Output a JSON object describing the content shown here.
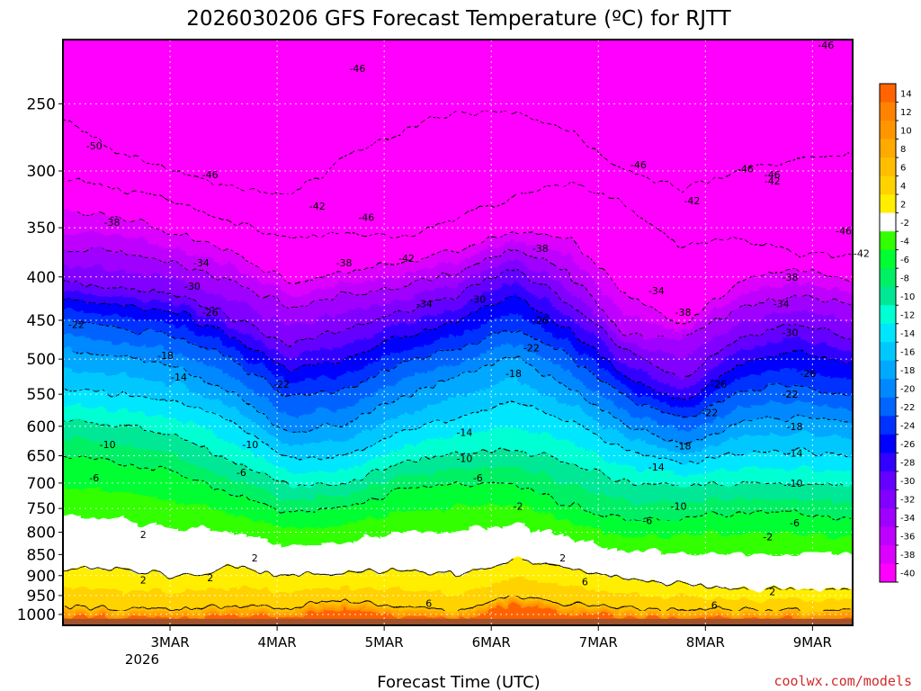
{
  "chart_data": {
    "type": "heatmap",
    "title": "2026030206 GFS Forecast Temperature (ºC) for RJTT",
    "xlabel": "Forecast Time (UTC)",
    "ylabel": "",
    "credit": "coolwx.com/models",
    "x_ticks": [
      "3MAR",
      "4MAR",
      "5MAR",
      "6MAR",
      "7MAR",
      "8MAR",
      "9MAR"
    ],
    "x_tick_sub": "2026",
    "x_range_hours": [
      -21,
      156
    ],
    "y_ticks": [
      250,
      300,
      350,
      400,
      450,
      500,
      550,
      600,
      650,
      700,
      750,
      800,
      850,
      900,
      950,
      1000
    ],
    "ylim": [
      1030,
      210
    ],
    "grid": true,
    "colorbar": {
      "levels": [
        14,
        12,
        10,
        8,
        6,
        4,
        2,
        -2,
        -4,
        -6,
        -8,
        -10,
        -12,
        -14,
        -16,
        -18,
        -20,
        -22,
        -24,
        -26,
        -28,
        -30,
        -32,
        -34,
        -36,
        -38,
        -40
      ],
      "colors": [
        "#ff6400",
        "#ff8200",
        "#ff9600",
        "#ffaa00",
        "#ffbe00",
        "#ffd200",
        "#ffee00",
        "#ffffff",
        "#32ff00",
        "#00ff32",
        "#00f064",
        "#00e896",
        "#00ffd2",
        "#00e6ff",
        "#00c8ff",
        "#00a8ff",
        "#0088ff",
        "#0064ff",
        "#0032ff",
        "#0000ff",
        "#3200ff",
        "#6400ff",
        "#8200ff",
        "#a000ff",
        "#be00ff",
        "#dc00ff",
        "#ff00ff"
      ]
    },
    "contours": [
      {
        "value": -46,
        "pressure": [
          260,
          285,
          300,
          315,
          320,
          290,
          270,
          255,
          255,
          270,
          300,
          315,
          300,
          290,
          285
        ]
      },
      {
        "value": -42,
        "pressure": [
          305,
          315,
          325,
          345,
          360,
          355,
          360,
          340,
          320,
          310,
          330,
          370,
          360,
          375,
          380
        ]
      },
      {
        "value": -38,
        "pressure": [
          335,
          340,
          355,
          375,
          405,
          395,
          385,
          370,
          355,
          360,
          420,
          455,
          405,
          390,
          405
        ]
      },
      {
        "value": -34,
        "pressure": [
          370,
          375,
          385,
          405,
          435,
          420,
          410,
          395,
          370,
          395,
          470,
          470,
          435,
          420,
          430
        ]
      },
      {
        "value": -30,
        "pressure": [
          405,
          410,
          420,
          445,
          480,
          460,
          440,
          420,
          390,
          430,
          490,
          525,
          470,
          455,
          470
        ]
      },
      {
        "value": -26,
        "pressure": [
          425,
          430,
          440,
          470,
          515,
          500,
          470,
          450,
          420,
          465,
          525,
          560,
          505,
          490,
          505
        ]
      },
      {
        "value": -22,
        "pressure": [
          450,
          460,
          470,
          500,
          555,
          545,
          505,
          485,
          460,
          495,
          555,
          590,
          545,
          535,
          555
        ]
      },
      {
        "value": -18,
        "pressure": [
          490,
          495,
          510,
          545,
          610,
          595,
          555,
          525,
          495,
          540,
          600,
          630,
          595,
          585,
          595
        ]
      },
      {
        "value": -14,
        "pressure": [
          540,
          550,
          560,
          595,
          655,
          650,
          610,
          585,
          560,
          595,
          640,
          665,
          645,
          640,
          650
        ]
      },
      {
        "value": -10,
        "pressure": [
          590,
          600,
          615,
          660,
          705,
          700,
          660,
          645,
          640,
          660,
          700,
          705,
          700,
          700,
          705
        ]
      },
      {
        "value": -6,
        "pressure": [
          650,
          660,
          680,
          720,
          760,
          750,
          710,
          700,
          700,
          745,
          775,
          770,
          760,
          760,
          770
        ]
      },
      {
        "value": 2,
        "pressure": [
          880,
          885,
          900,
          880,
          900,
          895,
          885,
          900,
          860,
          880,
          910,
          920,
          935,
          935,
          935
        ]
      },
      {
        "value": 6,
        "pressure": [
          975,
          985,
          990,
          975,
          980,
          960,
          985,
          990,
          950,
          975,
          985,
          990,
          985,
          990,
          990
        ]
      }
    ],
    "contour_labels": [
      {
        "text": "-50",
        "hour": -14,
        "p": 280
      },
      {
        "text": "-46",
        "hour": 45,
        "p": 227
      },
      {
        "text": "-46",
        "hour": 12,
        "p": 303
      },
      {
        "text": "-46",
        "hour": 47,
        "p": 340
      },
      {
        "text": "-46",
        "hour": 108,
        "p": 295
      },
      {
        "text": "-46",
        "hour": 150,
        "p": 213
      },
      {
        "text": "-46",
        "hour": 132,
        "p": 298
      },
      {
        "text": "-46",
        "hour": 138,
        "p": 303
      },
      {
        "text": "-46",
        "hour": 154,
        "p": 353
      },
      {
        "text": "-42",
        "hour": 36,
        "p": 330
      },
      {
        "text": "-42",
        "hour": 56,
        "p": 380
      },
      {
        "text": "-42",
        "hour": 120,
        "p": 325
      },
      {
        "text": "-42",
        "hour": 138,
        "p": 308
      },
      {
        "text": "-42",
        "hour": 158,
        "p": 375
      },
      {
        "text": "-38",
        "hour": -10,
        "p": 345
      },
      {
        "text": "-38",
        "hour": 42,
        "p": 385
      },
      {
        "text": "-38",
        "hour": 86,
        "p": 370
      },
      {
        "text": "-38",
        "hour": 118,
        "p": 440
      },
      {
        "text": "-38",
        "hour": 142,
        "p": 400
      },
      {
        "text": "-34",
        "hour": 10,
        "p": 385
      },
      {
        "text": "-34",
        "hour": 60,
        "p": 430
      },
      {
        "text": "-34",
        "hour": 112,
        "p": 415
      },
      {
        "text": "-34",
        "hour": 140,
        "p": 430
      },
      {
        "text": "-30",
        "hour": 8,
        "p": 410
      },
      {
        "text": "-30",
        "hour": 72,
        "p": 425
      },
      {
        "text": "-30",
        "hour": 142,
        "p": 465
      },
      {
        "text": "-26",
        "hour": 12,
        "p": 440
      },
      {
        "text": "-26",
        "hour": 86,
        "p": 450
      },
      {
        "text": "-26",
        "hour": 126,
        "p": 535
      },
      {
        "text": "-26",
        "hour": 146,
        "p": 520
      },
      {
        "text": "-22",
        "hour": -18,
        "p": 455
      },
      {
        "text": "-22",
        "hour": 28,
        "p": 535
      },
      {
        "text": "-22",
        "hour": 84,
        "p": 485
      },
      {
        "text": "-22",
        "hour": 124,
        "p": 578
      },
      {
        "text": "-22",
        "hour": 142,
        "p": 550
      },
      {
        "text": "-18",
        "hour": 2,
        "p": 495
      },
      {
        "text": "-18",
        "hour": 80,
        "p": 520
      },
      {
        "text": "-18",
        "hour": 118,
        "p": 633
      },
      {
        "text": "-18",
        "hour": 143,
        "p": 600
      },
      {
        "text": "-14",
        "hour": 5,
        "p": 525
      },
      {
        "text": "-14",
        "hour": 69,
        "p": 610
      },
      {
        "text": "-14",
        "hour": 112,
        "p": 670
      },
      {
        "text": "-14",
        "hour": 143,
        "p": 645
      },
      {
        "text": "-10",
        "hour": -11,
        "p": 630
      },
      {
        "text": "-10",
        "hour": 21,
        "p": 630
      },
      {
        "text": "-10",
        "hour": 69,
        "p": 655
      },
      {
        "text": "-10",
        "hour": 117,
        "p": 745
      },
      {
        "text": "-10",
        "hour": 143,
        "p": 700
      },
      {
        "text": "-6",
        "hour": -14,
        "p": 690
      },
      {
        "text": "-6",
        "hour": 19,
        "p": 680
      },
      {
        "text": "-6",
        "hour": 72,
        "p": 690
      },
      {
        "text": "-6",
        "hour": 110,
        "p": 775
      },
      {
        "text": "-6",
        "hour": 143,
        "p": 780
      },
      {
        "text": "-2",
        "hour": 81,
        "p": 745
      },
      {
        "text": "-2",
        "hour": 137,
        "p": 810
      },
      {
        "text": "2",
        "hour": -3,
        "p": 805
      },
      {
        "text": "2",
        "hour": 12,
        "p": 905
      },
      {
        "text": "2",
        "hour": 22,
        "p": 858
      },
      {
        "text": "2",
        "hour": 91,
        "p": 858
      },
      {
        "text": "2",
        "hour": -3,
        "p": 910
      },
      {
        "text": "2",
        "hour": 138,
        "p": 940
      },
      {
        "text": "6",
        "hour": 61,
        "p": 970
      },
      {
        "text": "6",
        "hour": 96,
        "p": 915
      },
      {
        "text": "6",
        "hour": 125,
        "p": 975
      }
    ]
  }
}
